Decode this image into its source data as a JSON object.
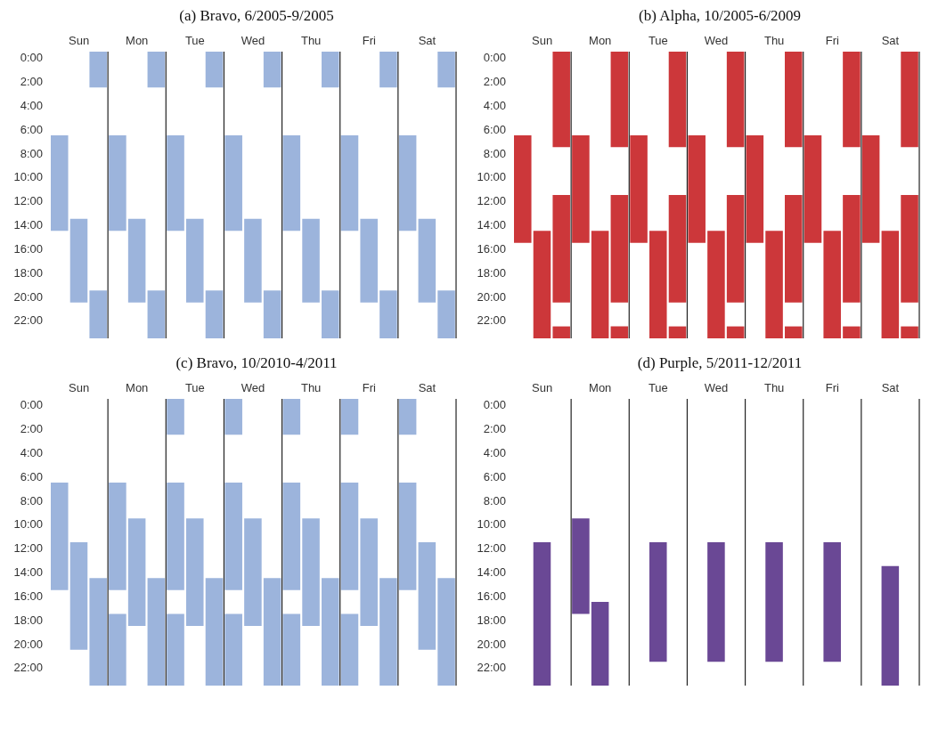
{
  "chart_data": [
    {
      "type": "bar",
      "title": "(a) Bravo, 6/2005-9/2005",
      "grid": "x",
      "categories": [
        null,
        "Sun",
        null,
        null,
        "Mon",
        null,
        null,
        "Tue",
        null,
        null,
        "Wed",
        null,
        null,
        "Thu",
        null,
        null,
        "Fri",
        null,
        null,
        "Sat",
        null
      ],
      "ylim": [
        23.5,
        -0.5
      ],
      "yticks": [
        {
          "value": 0,
          "label": "0:00"
        },
        {
          "value": 2,
          "label": "2:00"
        },
        {
          "value": 4,
          "label": "4:00"
        },
        {
          "value": 6,
          "label": "6:00"
        },
        {
          "value": 8,
          "label": "8:00"
        },
        {
          "value": 10,
          "label": "10:00"
        },
        {
          "value": 12,
          "label": "12:00"
        },
        {
          "value": 14,
          "label": "14:00"
        },
        {
          "value": 16,
          "label": "16:00"
        },
        {
          "value": 18,
          "label": "18:00"
        },
        {
          "value": 20,
          "label": "20:00"
        },
        {
          "value": 22,
          "label": "22:00"
        }
      ],
      "series": [
        {
          "color": "#9cb4dc",
          "base": [
            6.5,
            13.5,
            -0.5,
            6.5,
            13.5,
            -0.5,
            6.5,
            13.5,
            -0.5,
            6.5,
            13.5,
            -0.5,
            6.5,
            13.5,
            -0.5,
            6.5,
            13.5,
            -0.5,
            6.5,
            13.5,
            -0.5
          ],
          "values": [
            8,
            7,
            3,
            8,
            7,
            3,
            8,
            7,
            3,
            8,
            7,
            3,
            8,
            7,
            3,
            8,
            7,
            3,
            8,
            7,
            3
          ]
        },
        {
          "color": "#9cb4dc",
          "base": [
            null,
            null,
            19.5,
            null,
            null,
            19.5,
            null,
            null,
            19.5,
            null,
            null,
            19.5,
            null,
            null,
            19.5,
            null,
            null,
            19.5,
            null,
            null,
            19.5
          ],
          "values": [
            null,
            null,
            4,
            null,
            null,
            4,
            null,
            null,
            4,
            null,
            null,
            4,
            null,
            null,
            4,
            null,
            null,
            4,
            null,
            null,
            4
          ]
        }
      ]
    },
    {
      "type": "bar",
      "title": "(b) Alpha, 10/2005-6/2009",
      "grid": "x",
      "categories": [
        null,
        "Sun",
        null,
        null,
        "Mon",
        null,
        null,
        "Tue",
        null,
        null,
        "Wed",
        null,
        null,
        "Thu",
        null,
        null,
        "Fri",
        null,
        null,
        "Sat",
        null
      ],
      "ylim": [
        23.5,
        -0.5
      ],
      "yticks": [
        {
          "value": 0,
          "label": "0:00"
        },
        {
          "value": 2,
          "label": "2:00"
        },
        {
          "value": 4,
          "label": "4:00"
        },
        {
          "value": 6,
          "label": "6:00"
        },
        {
          "value": 8,
          "label": "8:00"
        },
        {
          "value": 10,
          "label": "10:00"
        },
        {
          "value": 12,
          "label": "12:00"
        },
        {
          "value": 14,
          "label": "14:00"
        },
        {
          "value": 16,
          "label": "16:00"
        },
        {
          "value": 18,
          "label": "18:00"
        },
        {
          "value": 20,
          "label": "20:00"
        },
        {
          "value": 22,
          "label": "22:00"
        }
      ],
      "series": [
        {
          "color": "#cc373a",
          "base": [
            6.5,
            14.5,
            -0.5,
            6.5,
            14.5,
            -0.5,
            6.5,
            14.5,
            -0.5,
            6.5,
            14.5,
            -0.5,
            6.5,
            14.5,
            -0.5,
            6.5,
            14.5,
            -0.5,
            6.5,
            14.5,
            -0.5
          ],
          "values": [
            9,
            9,
            8,
            9,
            9,
            8,
            9,
            9,
            8,
            9,
            9,
            8,
            9,
            9,
            8,
            9,
            9,
            8,
            9,
            9,
            8
          ]
        },
        {
          "color": "#cc373a",
          "base": [
            null,
            null,
            11.5,
            null,
            null,
            11.5,
            null,
            null,
            11.5,
            null,
            null,
            11.5,
            null,
            null,
            11.5,
            null,
            null,
            11.5,
            null,
            null,
            11.5
          ],
          "values": [
            null,
            null,
            9,
            null,
            null,
            9,
            null,
            null,
            9,
            null,
            null,
            9,
            null,
            null,
            9,
            null,
            null,
            9,
            null,
            null,
            9
          ]
        },
        {
          "color": "#cc373a",
          "base": [
            null,
            null,
            22.5,
            null,
            null,
            22.5,
            null,
            null,
            22.5,
            null,
            null,
            22.5,
            null,
            null,
            22.5,
            null,
            null,
            22.5,
            null,
            null,
            22.5
          ],
          "values": [
            null,
            null,
            1,
            null,
            null,
            1,
            null,
            null,
            1,
            null,
            null,
            1,
            null,
            null,
            1,
            null,
            null,
            1,
            null,
            null,
            1
          ]
        }
      ]
    },
    {
      "type": "bar",
      "title": "(c) Bravo, 10/2010-4/2011",
      "grid": "x",
      "categories": [
        null,
        "Sun",
        null,
        null,
        "Mon",
        null,
        null,
        "Tue",
        null,
        null,
        "Wed",
        null,
        null,
        "Thu",
        null,
        null,
        "Fri",
        null,
        null,
        "Sat",
        null
      ],
      "ylim": [
        23.5,
        -0.5
      ],
      "yticks": [
        {
          "value": 0,
          "label": "0:00"
        },
        {
          "value": 2,
          "label": "2:00"
        },
        {
          "value": 4,
          "label": "4:00"
        },
        {
          "value": 6,
          "label": "6:00"
        },
        {
          "value": 8,
          "label": "8:00"
        },
        {
          "value": 10,
          "label": "10:00"
        },
        {
          "value": 12,
          "label": "12:00"
        },
        {
          "value": 14,
          "label": "14:00"
        },
        {
          "value": 16,
          "label": "16:00"
        },
        {
          "value": 18,
          "label": "18:00"
        },
        {
          "value": 20,
          "label": "20:00"
        },
        {
          "value": 22,
          "label": "22:00"
        }
      ],
      "series": [
        {
          "color": "#9cb4dc",
          "base": [
            6.5,
            11.5,
            14.5,
            6.5,
            9.5,
            14.5,
            -0.5,
            9.5,
            14.5,
            -0.5,
            9.5,
            14.5,
            -0.5,
            9.5,
            14.5,
            -0.5,
            9.5,
            14.5,
            -0.5,
            11.5,
            14.5
          ],
          "values": [
            9,
            9,
            9,
            9,
            9,
            9,
            3,
            9,
            9,
            3,
            9,
            9,
            3,
            9,
            9,
            3,
            9,
            9,
            3,
            9,
            9
          ]
        },
        {
          "color": "#9cb4dc",
          "base": [
            null,
            null,
            null,
            17.5,
            null,
            null,
            6.5,
            null,
            null,
            6.5,
            null,
            null,
            6.5,
            null,
            null,
            6.5,
            null,
            null,
            6.5,
            null,
            null
          ],
          "values": [
            null,
            null,
            null,
            6,
            null,
            null,
            9,
            null,
            null,
            9,
            null,
            null,
            9,
            null,
            null,
            9,
            null,
            null,
            9,
            null,
            null
          ]
        },
        {
          "color": "#9cb4dc",
          "base": [
            null,
            null,
            null,
            null,
            null,
            null,
            17.5,
            null,
            null,
            17.5,
            null,
            null,
            17.5,
            null,
            null,
            17.5,
            null,
            null,
            null,
            null,
            null
          ],
          "values": [
            null,
            null,
            null,
            null,
            null,
            null,
            6,
            null,
            null,
            6,
            null,
            null,
            6,
            null,
            null,
            6,
            null,
            null,
            null,
            null,
            null
          ]
        }
      ]
    },
    {
      "type": "bar",
      "title": "(d) Purple, 5/2011-12/2011",
      "grid": "x",
      "categories": [
        null,
        "Sun",
        null,
        null,
        "Mon",
        null,
        null,
        "Tue",
        null,
        null,
        "Wed",
        null,
        null,
        "Thu",
        null,
        null,
        "Fri",
        null,
        null,
        "Sat",
        null
      ],
      "ylim": [
        23.5,
        -0.5
      ],
      "yticks": [
        {
          "value": 0,
          "label": "0:00"
        },
        {
          "value": 2,
          "label": "2:00"
        },
        {
          "value": 4,
          "label": "4:00"
        },
        {
          "value": 6,
          "label": "6:00"
        },
        {
          "value": 8,
          "label": "8:00"
        },
        {
          "value": 10,
          "label": "10:00"
        },
        {
          "value": 12,
          "label": "12:00"
        },
        {
          "value": 14,
          "label": "14:00"
        },
        {
          "value": 16,
          "label": "16:00"
        },
        {
          "value": 18,
          "label": "18:00"
        },
        {
          "value": 20,
          "label": "20:00"
        },
        {
          "value": 22,
          "label": "22:00"
        }
      ],
      "series": [
        {
          "color": "#6a4895",
          "base": [
            null,
            11.5,
            null,
            9.5,
            16.5,
            null,
            null,
            11.5,
            null,
            null,
            11.5,
            null,
            null,
            11.5,
            null,
            null,
            11.5,
            null,
            null,
            13.5,
            null
          ],
          "values": [
            null,
            12,
            null,
            8,
            7,
            null,
            null,
            10,
            null,
            null,
            10,
            null,
            null,
            10,
            null,
            null,
            10,
            null,
            null,
            10,
            null
          ]
        }
      ]
    }
  ]
}
